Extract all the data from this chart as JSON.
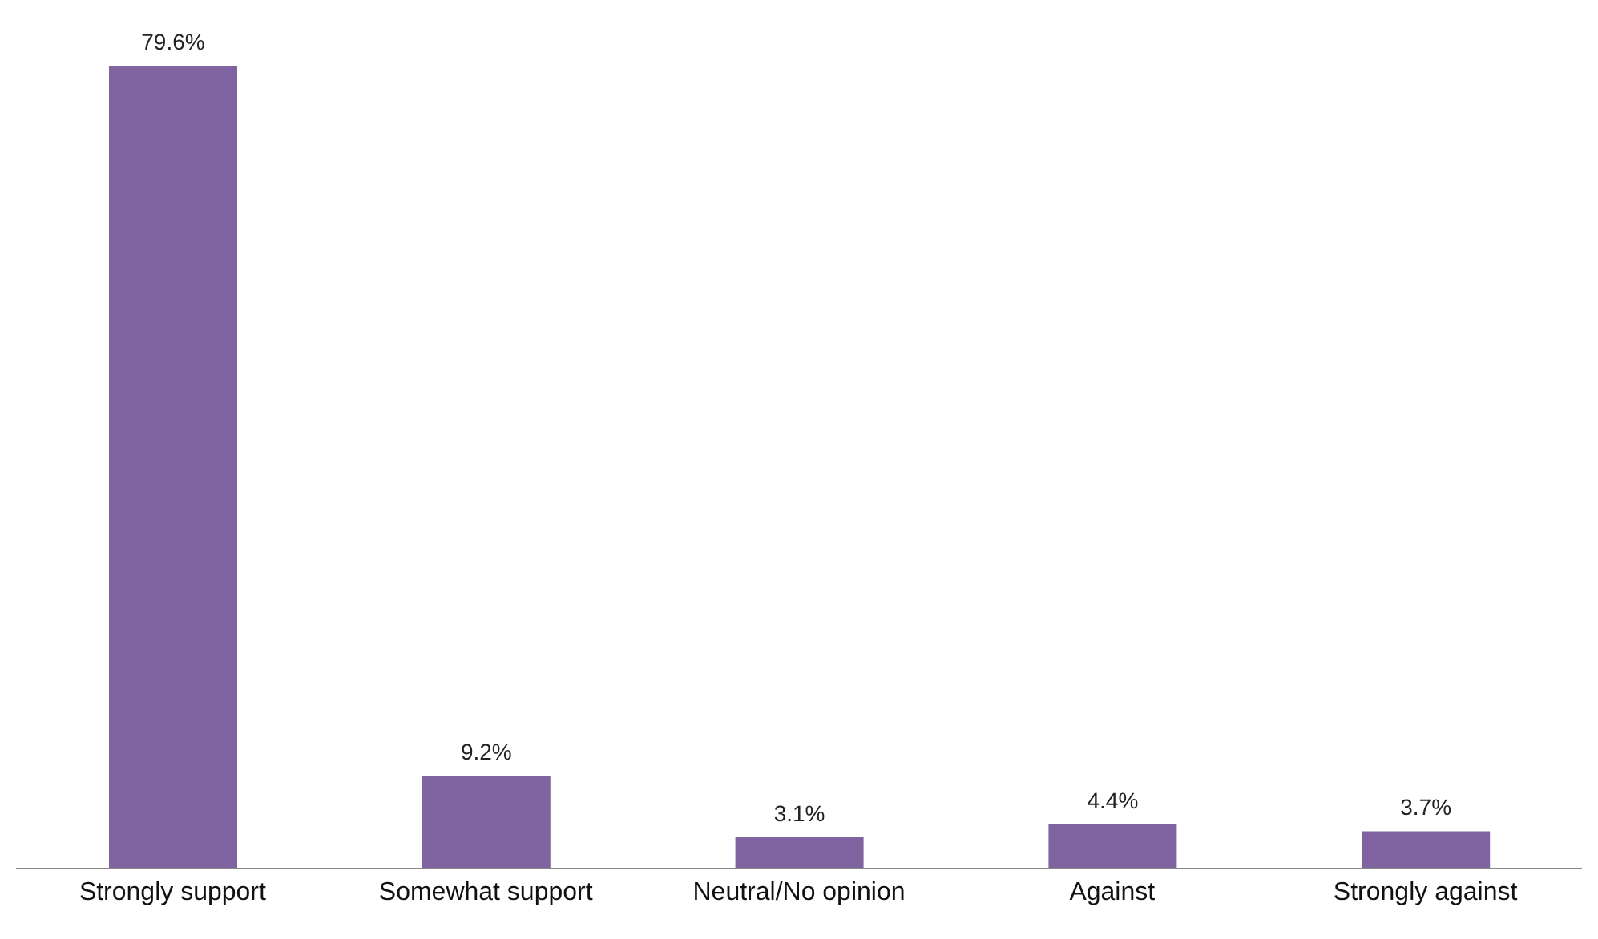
{
  "chart_data": {
    "type": "bar",
    "categories": [
      "Strongly support",
      "Somewhat support",
      "Neutral/No opinion",
      "Against",
      "Strongly against"
    ],
    "values": [
      79.6,
      9.2,
      3.1,
      4.4,
      3.7
    ],
    "value_labels": [
      "79.6%",
      "9.2%",
      "3.1%",
      "4.4%",
      "3.7%"
    ],
    "color": "#8064a2",
    "grid": false,
    "legend": false
  }
}
